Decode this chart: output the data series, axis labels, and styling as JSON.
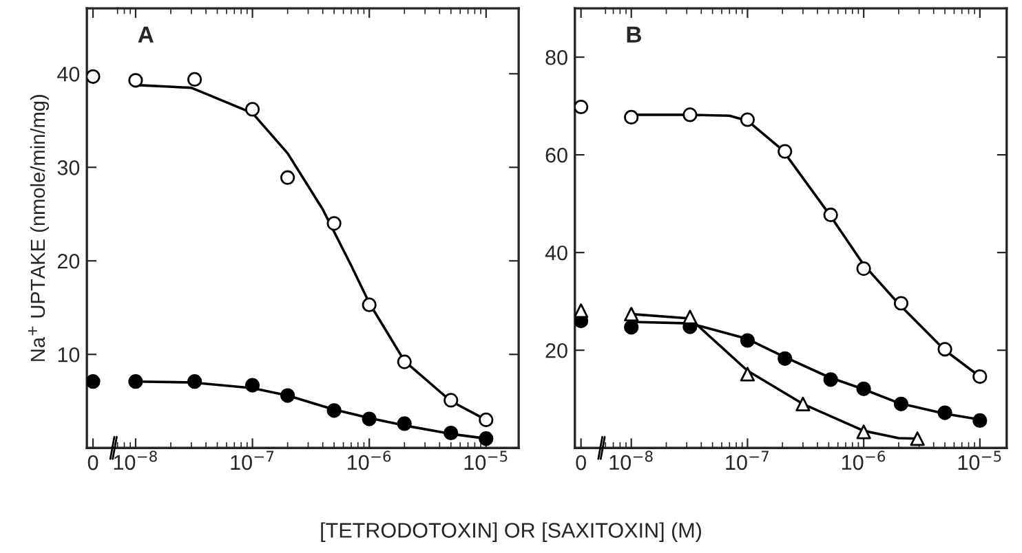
{
  "chart_data": [
    {
      "type": "scatter",
      "ylabel": "Na$^{+}$ UPTAKE (nmole/min/mg)",
      "categories": [
        "0"
      ],
      "ylim": [
        0,
        47
      ],
      "yticks": [
        10,
        20,
        30,
        40
      ],
      "grid": false,
      "series": [
        {
          "marker": "circle",
          "color": "#ffffff",
          "values": [
            39.7
          ]
        },
        {
          "marker": "circle",
          "color": "#000000",
          "values": [
            7.1
          ]
        }
      ]
    },
    {
      "type": "scatter",
      "xlabel": "[TETRODOTOXIN] OR [SAXITOXIN] (M)",
      "annotations": [
        "A"
      ],
      "tick_labels": "x",
      "log": "x",
      "xlim": [
        7e-09,
        1.9e-05
      ],
      "ylim": [
        0,
        47
      ],
      "yticks": [
        10,
        20,
        30,
        40
      ],
      "xticks": [
        {
          "value": 1e-08,
          "label": "10$^{−8}$"
        },
        {
          "value": 1e-07,
          "label": "10$^{−7}$"
        },
        {
          "value": 1e-06,
          "label": "10$^{−6}$"
        },
        {
          "value": 1e-05,
          "label": "10$^{−5}$"
        }
      ],
      "grid": false,
      "series": [
        {
          "marker": "circle",
          "color": "#ffffff",
          "x": [
            1e-08,
            3.2e-08,
            1e-07,
            2e-07,
            5e-07,
            1e-06,
            2e-06,
            5e-06,
            1e-05
          ],
          "values": [
            39.3,
            39.4,
            36.2,
            28.9,
            24.0,
            15.3,
            9.2,
            5.1,
            3.0
          ]
        },
        {
          "marker": "circle",
          "color": "#000000",
          "x": [
            1e-08,
            3.2e-08,
            1e-07,
            2e-07,
            5e-07,
            1e-06,
            2e-06,
            5e-06,
            1e-05
          ],
          "values": [
            7.1,
            7.1,
            6.7,
            5.6,
            4.0,
            3.1,
            2.6,
            1.6,
            1.0
          ]
        },
        {
          "type": "line",
          "marker": "none",
          "line_style": "solid",
          "color": "#000000",
          "x": [
            1e-08,
            3e-08,
            1e-07,
            2e-07,
            4e-07,
            7e-07,
            1e-06,
            2e-06,
            5e-06,
            1e-05
          ],
          "values": [
            38.8,
            38.5,
            35.8,
            31.5,
            25.5,
            19.5,
            15.5,
            9.3,
            5.0,
            3.0
          ]
        },
        {
          "type": "line",
          "marker": "none",
          "line_style": "solid",
          "color": "#000000",
          "x": [
            1e-08,
            3e-08,
            1e-07,
            2e-07,
            5e-07,
            1e-06,
            2e-06,
            5e-06,
            1e-05
          ],
          "values": [
            7.1,
            7.0,
            6.4,
            5.6,
            4.1,
            3.2,
            2.4,
            1.5,
            1.0
          ]
        }
      ]
    },
    {
      "type": "scatter",
      "categories": [
        "0"
      ],
      "ylim": [
        0,
        90
      ],
      "yticks": [
        20,
        40,
        60,
        80
      ],
      "grid": false,
      "series": [
        {
          "marker": "circle",
          "color": "#ffffff",
          "values": [
            69.8
          ]
        },
        {
          "marker": "circle",
          "color": "#000000",
          "values": [
            26.0
          ]
        },
        {
          "marker": "triangle",
          "color": "#ffffff",
          "values": [
            28.1
          ]
        }
      ]
    },
    {
      "type": "scatter",
      "annotations": [
        "B"
      ],
      "tick_labels": "x",
      "log": "x",
      "xlim": [
        6e-09,
        1.7e-05
      ],
      "ylim": [
        0,
        90
      ],
      "yticks": [
        20,
        40,
        60,
        80
      ],
      "xticks": [
        {
          "value": 1e-08,
          "label": "10$^{−8}$"
        },
        {
          "value": 1e-07,
          "label": "10$^{−7}$"
        },
        {
          "value": 1e-06,
          "label": "10$^{−6}$"
        },
        {
          "value": 1e-05,
          "label": "10$^{−5}$"
        }
      ],
      "grid": false,
      "series": [
        {
          "marker": "circle",
          "color": "#ffffff",
          "x": [
            1e-08,
            3.2e-08,
            1e-07,
            2.1e-07,
            5.2e-07,
            1e-06,
            2.1e-06,
            5e-06,
            1e-05
          ],
          "values": [
            67.7,
            68.2,
            67.2,
            60.7,
            47.7,
            36.7,
            29.6,
            20.2,
            14.6
          ]
        },
        {
          "marker": "circle",
          "color": "#000000",
          "x": [
            1e-08,
            3.2e-08,
            1e-07,
            2.1e-07,
            5.2e-07,
            1e-06,
            2.1e-06,
            5e-06,
            1e-05
          ],
          "values": [
            24.7,
            24.8,
            22.0,
            18.3,
            14.0,
            12.1,
            9.0,
            7.2,
            5.6
          ]
        },
        {
          "marker": "triangle",
          "color": "#ffffff",
          "x": [
            1e-08,
            3.2e-08,
            1e-07,
            3e-07,
            1e-06,
            2.9e-06
          ],
          "values": [
            27.4,
            26.8,
            15.1,
            9.0,
            3.3,
            1.9
          ]
        },
        {
          "type": "line",
          "marker": "none",
          "line_style": "solid",
          "color": "#000000",
          "x": [
            1e-08,
            3e-08,
            7e-08,
            1e-07,
            2e-07,
            5e-07,
            1e-06,
            2e-06,
            5e-06,
            1e-05
          ],
          "values": [
            68.2,
            68.2,
            68.0,
            67.0,
            61.0,
            48.0,
            37.5,
            29.5,
            20.0,
            14.6
          ]
        },
        {
          "type": "line",
          "marker": "none",
          "line_style": "solid",
          "color": "#000000",
          "x": [
            1e-08,
            3.2e-08,
            1e-07,
            2e-07,
            5e-07,
            1e-06,
            2e-06,
            5e-06,
            1e-05
          ],
          "values": [
            25.8,
            25.5,
            22.3,
            18.8,
            14.5,
            12.0,
            9.2,
            7.0,
            5.8
          ]
        },
        {
          "type": "line",
          "marker": "none",
          "line_style": "solid",
          "color": "#000000",
          "x": [
            1e-08,
            3.2e-08,
            1e-07,
            3e-07,
            1e-06,
            2e-06,
            3e-06
          ],
          "values": [
            27.4,
            26.5,
            15.8,
            9.0,
            3.5,
            2.0,
            1.9
          ]
        }
      ]
    }
  ]
}
